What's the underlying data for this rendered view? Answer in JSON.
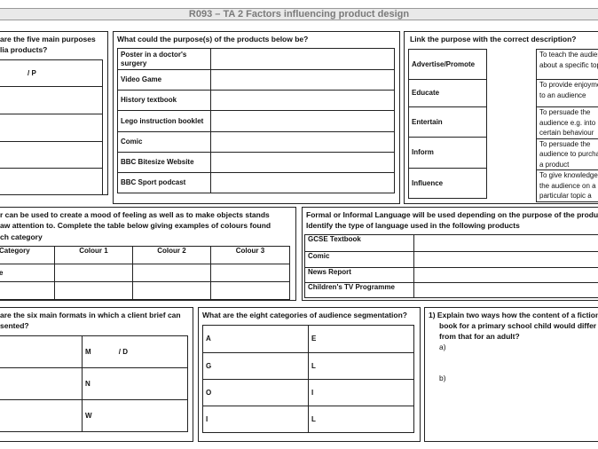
{
  "title": "R093 – TA 2 Factors influencing product design",
  "purposes": {
    "question": [
      "are the five main purposes",
      "lia products?"
    ],
    "rows": [
      "/ P",
      "",
      "",
      "",
      ""
    ]
  },
  "products": {
    "question": "What could the purpose(s) of the products below be?",
    "rows": [
      "Poster in a doctor's surgery",
      "Video Game",
      "History textbook",
      "Lego instruction booklet",
      "Comic",
      "BBC Bitesize Website",
      "BBC Sport podcast"
    ]
  },
  "link": {
    "question": "Link the purpose with the correct description?",
    "purposes": [
      "Advertise/Promote",
      "Educate",
      "Entertain",
      "Inform",
      "Influence"
    ],
    "descriptions": [
      "To teach the audience about a specific topic",
      "To provide enjoyment to an audience",
      "To persuade the audience e.g. into certain behaviour",
      "To persuade the audience to purchase a product",
      "To give knowledge to the audience on a particular topic a"
    ]
  },
  "colour": {
    "question": [
      "r can be used to create a mood of feeling as well as to make objects stands",
      "aw attention to. Complete the table below giving examples of colours found",
      "ch category"
    ],
    "headers": [
      "Category",
      "Colour 1",
      "Colour 2",
      "Colour 3"
    ],
    "rows": [
      "",
      ""
    ]
  },
  "language": {
    "question": [
      "Formal or Informal Language will be used depending on the purpose of the product",
      "Identify the type of language used in the following products"
    ],
    "rows": [
      "GCSE Textbook",
      "Comic",
      "News Report",
      "Children's TV Programme"
    ]
  },
  "formats": {
    "question": [
      "are the six main formats in which a client brief can",
      "sented?"
    ],
    "right": [
      "M              / D",
      "N",
      "W"
    ]
  },
  "segmentation": {
    "question": "What are the eight categories of audience segmentation?",
    "left": [
      "A",
      "G",
      "O",
      "I"
    ],
    "right": [
      "E",
      "L",
      "I",
      "L"
    ]
  },
  "fiction": {
    "question": [
      "1)  Explain two ways how the content of a  fiction",
      "book for a primary school child would differ",
      "from that for an adult?"
    ],
    "a": "a)",
    "b": "b)"
  }
}
